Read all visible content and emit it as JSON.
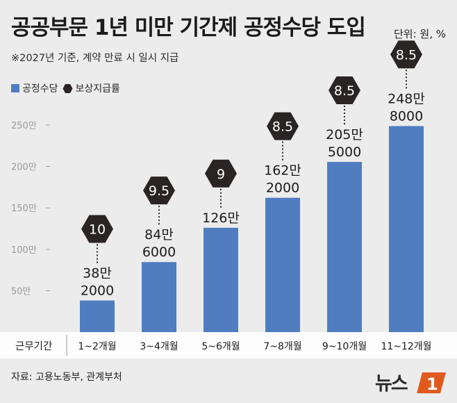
{
  "title": "공공부문 1년 미만 기간제 공정수당 도입",
  "unit": "단위: 원, %",
  "note": "※2027년 기준, 계약 만료 시 일시 지급",
  "legend": {
    "bar": "공정수당",
    "hex": "보상지급률"
  },
  "source": "자료: 고용노동부, 관계부처",
  "logo": {
    "text": "뉴스",
    "mark": "1"
  },
  "colors": {
    "bar": "#4f7dc0",
    "hex": "#2b2424",
    "background": "#ececec"
  },
  "chart_data": {
    "type": "bar",
    "xlabel": "근무기간",
    "categories": [
      "1~2개월",
      "3~4개월",
      "5~6개월",
      "7~8개월",
      "9~10개월",
      "11~12개월"
    ],
    "series": [
      {
        "name": "공정수당",
        "values": [
          382000,
          846000,
          1260000,
          1622000,
          2055000,
          2488000
        ],
        "labels": [
          [
            "38만",
            "2000"
          ],
          [
            "84만",
            "6000"
          ],
          [
            "126만",
            ""
          ],
          [
            "162만",
            "2000"
          ],
          [
            "205만",
            "5000"
          ],
          [
            "248만",
            "8000"
          ]
        ]
      },
      {
        "name": "보상지급률",
        "values": [
          10,
          9.5,
          9,
          8.5,
          8.5,
          8.5
        ],
        "labels": [
          "10",
          "9.5",
          "9",
          "8.5",
          "8.5",
          "8.5"
        ]
      }
    ],
    "yticks": [
      500000,
      1000000,
      1500000,
      2000000,
      2500000
    ],
    "yticklabels": [
      "50만",
      "100만",
      "150만",
      "200만",
      "250만"
    ],
    "ylim": [
      0,
      2500000
    ],
    "grid": false
  }
}
